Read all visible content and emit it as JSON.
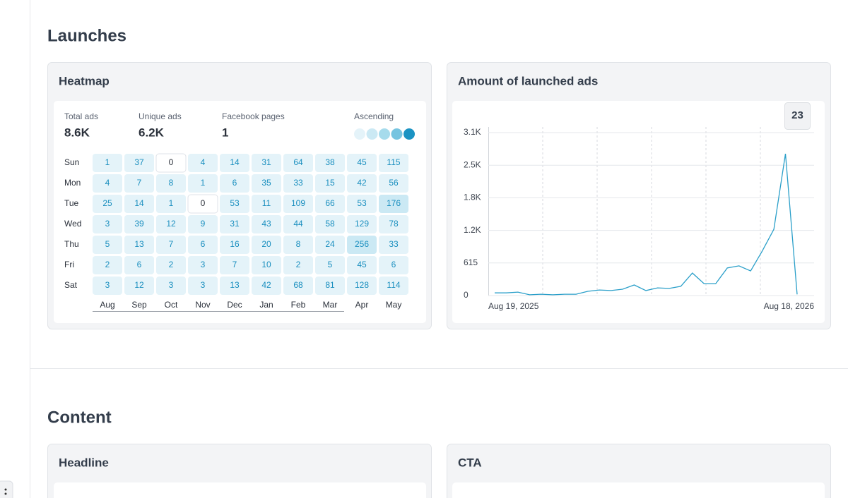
{
  "sections": [
    {
      "title": "Launches"
    },
    {
      "title": "Content"
    }
  ],
  "heatmap_card": {
    "title": "Heatmap",
    "stats": [
      {
        "label": "Total ads",
        "value": "8.6K"
      },
      {
        "label": "Unique ads",
        "value": "6.2K"
      },
      {
        "label": "Facebook pages",
        "value": "1"
      }
    ],
    "legend": {
      "label": "Ascending",
      "colors": [
        "#e4f3f9",
        "#cbe9f4",
        "#a6dbec",
        "#76c4e0",
        "#1b93c3"
      ]
    },
    "days": [
      "Sun",
      "Mon",
      "Tue",
      "Wed",
      "Thu",
      "Fri",
      "Sat"
    ],
    "months": [
      "Aug",
      "Sep",
      "Oct",
      "Nov",
      "Dec",
      "Jan",
      "Feb",
      "Mar",
      "Apr",
      "May"
    ],
    "values": [
      [
        1,
        37,
        0,
        4,
        14,
        31,
        64,
        38,
        45,
        115
      ],
      [
        4,
        7,
        8,
        1,
        6,
        35,
        33,
        15,
        42,
        56
      ],
      [
        25,
        14,
        1,
        0,
        53,
        11,
        109,
        66,
        53,
        176
      ],
      [
        3,
        39,
        12,
        9,
        31,
        43,
        44,
        58,
        129,
        78
      ],
      [
        5,
        13,
        7,
        6,
        16,
        20,
        8,
        24,
        256,
        33
      ],
      [
        2,
        6,
        2,
        3,
        7,
        10,
        2,
        5,
        45,
        6
      ],
      [
        3,
        12,
        3,
        3,
        13,
        42,
        68,
        81,
        128,
        114
      ]
    ]
  },
  "chart_card": {
    "title": "Amount of launched ads",
    "chart_data": {
      "type": "line",
      "x_labels": [
        "Aug 19, 2025",
        "Aug 18, 2026"
      ],
      "values": [
        50,
        50,
        65,
        15,
        25,
        15,
        25,
        25,
        80,
        105,
        95,
        120,
        200,
        95,
        145,
        135,
        175,
        425,
        225,
        225,
        520,
        560,
        465,
        840,
        1250,
        2675,
        23
      ],
      "color": "#2a9fc9",
      "ylim": [
        0,
        3075
      ],
      "yticks": [
        0,
        615,
        {
          "value": 1230,
          "label": "1.2K"
        },
        {
          "value": 1845,
          "label": "1.8K"
        },
        {
          "value": 2460,
          "label": "2.5K"
        },
        {
          "value": 3075,
          "label": "3.1K"
        }
      ],
      "grid": true,
      "tooltip": 23
    }
  },
  "content_cards": [
    {
      "title": "Headline"
    },
    {
      "title": "CTA"
    }
  ]
}
